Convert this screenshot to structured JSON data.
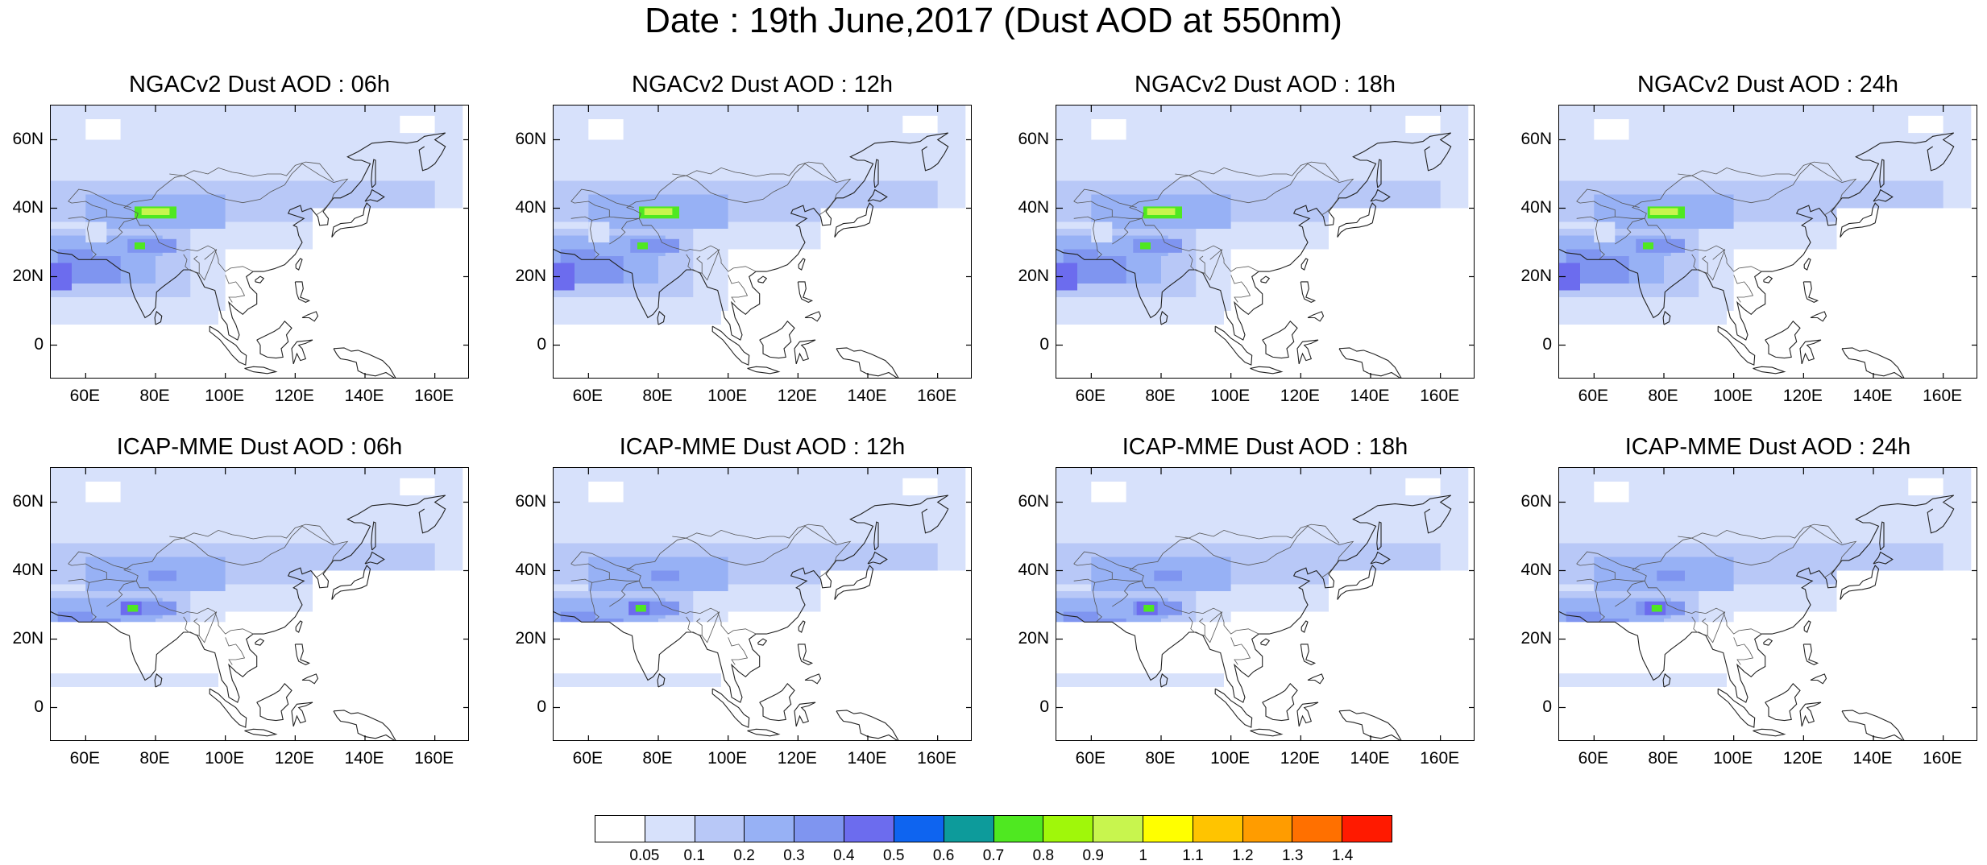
{
  "title": "Date : 19th June,2017 (Dust AOD at 550nm)",
  "panels": [
    {
      "title": "NGACv2 Dust AOD : 06h",
      "model": "NGACv2",
      "lead": "06h"
    },
    {
      "title": "NGACv2 Dust AOD : 12h",
      "model": "NGACv2",
      "lead": "12h"
    },
    {
      "title": "NGACv2 Dust AOD : 18h",
      "model": "NGACv2",
      "lead": "18h"
    },
    {
      "title": "NGACv2 Dust AOD : 24h",
      "model": "NGACv2",
      "lead": "24h"
    },
    {
      "title": "ICAP-MME Dust AOD : 06h",
      "model": "ICAP-MME",
      "lead": "06h"
    },
    {
      "title": "ICAP-MME Dust AOD : 12h",
      "model": "ICAP-MME",
      "lead": "12h"
    },
    {
      "title": "ICAP-MME Dust AOD : 18h",
      "model": "ICAP-MME",
      "lead": "18h"
    },
    {
      "title": "ICAP-MME Dust AOD : 24h",
      "model": "ICAP-MME",
      "lead": "24h"
    }
  ],
  "axes": {
    "lat_labels": [
      "60N",
      "40N",
      "20N",
      "0"
    ],
    "lat_values": [
      60,
      40,
      20,
      0
    ],
    "lon_labels": [
      "60E",
      "80E",
      "100E",
      "120E",
      "140E",
      "160E"
    ],
    "lon_values": [
      60,
      80,
      100,
      120,
      140,
      160
    ],
    "lon_range": [
      50,
      170
    ],
    "lat_range": [
      -10,
      70
    ]
  },
  "colorbar": {
    "labels": [
      "0.05",
      "0.1",
      "0.2",
      "0.3",
      "0.4",
      "0.5",
      "0.6",
      "0.7",
      "0.8",
      "0.9",
      "1",
      "1.1",
      "1.2",
      "1.3",
      "1.4"
    ],
    "colors": [
      "#ffffff",
      "#d7e1fb",
      "#b8c8f7",
      "#97b1f5",
      "#7f95f0",
      "#6c6cee",
      "#0e64f0",
      "#0d9b9b",
      "#4fe821",
      "#a0f70a",
      "#c8f54e",
      "#ffff00",
      "#ffc400",
      "#ff9c00",
      "#ff7000",
      "#ff1a00"
    ]
  }
}
